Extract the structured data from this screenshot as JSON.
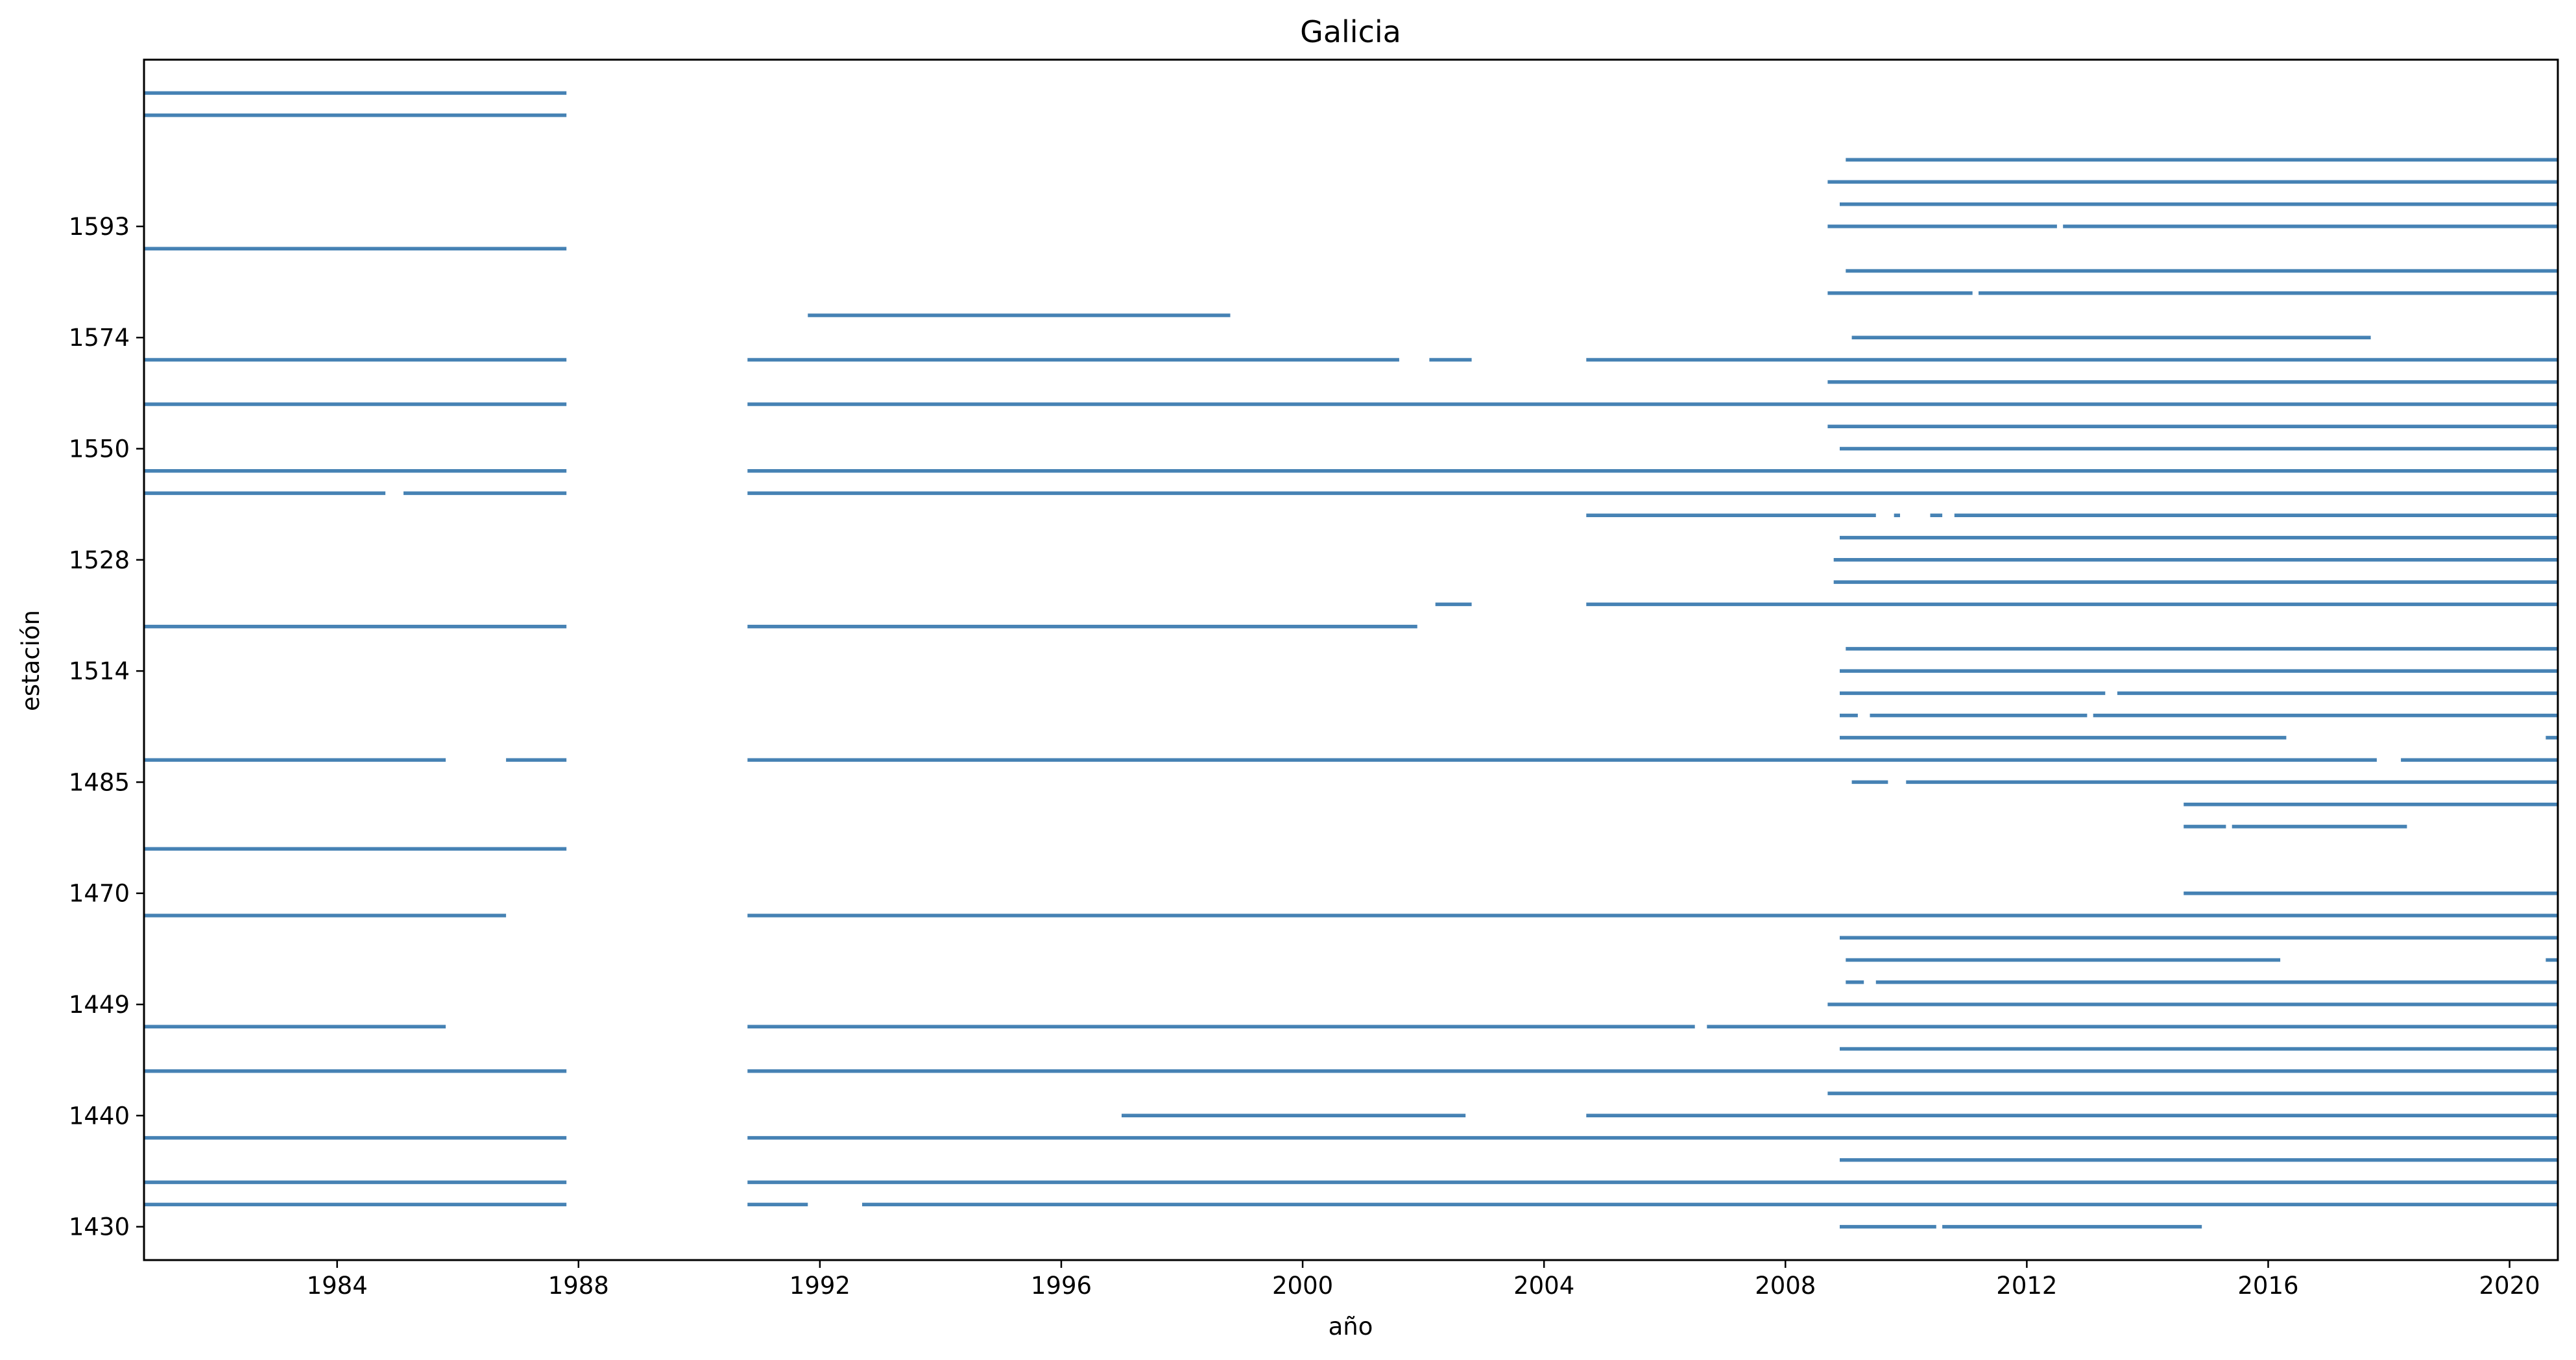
{
  "chart_data": {
    "type": "timeline",
    "title": "Galicia",
    "xlabel": "año",
    "ylabel": "estación",
    "xlim": [
      1980.8,
      2020.8
    ],
    "x_ticks": [
      1984,
      1988,
      1992,
      1996,
      2000,
      2004,
      2008,
      2012,
      2016,
      2020
    ],
    "ylim": [
      -1.5,
      52.5
    ],
    "y_ticks": [
      {
        "row": 0,
        "label": "1430"
      },
      {
        "row": 5,
        "label": "1440"
      },
      {
        "row": 10,
        "label": "1449"
      },
      {
        "row": 15,
        "label": "1470"
      },
      {
        "row": 20,
        "label": "1485"
      },
      {
        "row": 25,
        "label": "1514"
      },
      {
        "row": 30,
        "label": "1528"
      },
      {
        "row": 35,
        "label": "1550"
      },
      {
        "row": 40,
        "label": "1574"
      },
      {
        "row": 45,
        "label": "1593"
      }
    ],
    "series_color": "#4682b4",
    "rows": [
      {
        "row": 0,
        "segments": [
          [
            2008.9,
            2010.5
          ],
          [
            2010.6,
            2014.9
          ]
        ]
      },
      {
        "row": 1,
        "segments": [
          [
            1980.8,
            1987.8
          ],
          [
            1990.8,
            1991.8
          ],
          [
            1992.7,
            2020.8
          ]
        ]
      },
      {
        "row": 2,
        "segments": [
          [
            1980.8,
            1987.8
          ],
          [
            1990.8,
            2020.8
          ]
        ]
      },
      {
        "row": 3,
        "segments": [
          [
            2008.9,
            2020.8
          ]
        ]
      },
      {
        "row": 4,
        "segments": [
          [
            1980.8,
            1987.8
          ],
          [
            1990.8,
            2020.8
          ]
        ]
      },
      {
        "row": 5,
        "segments": [
          [
            1997.0,
            2002.7
          ],
          [
            2004.7,
            2020.8
          ]
        ]
      },
      {
        "row": 6,
        "segments": [
          [
            2008.7,
            2020.8
          ]
        ]
      },
      {
        "row": 7,
        "segments": [
          [
            1980.8,
            1987.8
          ],
          [
            1990.8,
            2020.8
          ]
        ]
      },
      {
        "row": 8,
        "segments": [
          [
            2008.9,
            2020.8
          ]
        ]
      },
      {
        "row": 9,
        "segments": [
          [
            1980.8,
            1985.8
          ],
          [
            1990.8,
            2006.5
          ],
          [
            2006.7,
            2020.8
          ]
        ]
      },
      {
        "row": 10,
        "segments": [
          [
            2008.7,
            2020.8
          ]
        ]
      },
      {
        "row": 11,
        "segments": [
          [
            2009.0,
            2009.3
          ],
          [
            2009.5,
            2020.8
          ]
        ]
      },
      {
        "row": 12,
        "segments": [
          [
            2009.0,
            2016.2
          ],
          [
            2020.6,
            2020.8
          ]
        ]
      },
      {
        "row": 13,
        "segments": [
          [
            2008.9,
            2020.8
          ]
        ]
      },
      {
        "row": 14,
        "segments": [
          [
            1980.8,
            1986.8
          ],
          [
            1990.8,
            2020.8
          ]
        ]
      },
      {
        "row": 15,
        "segments": [
          [
            2014.6,
            2020.8
          ]
        ]
      },
      {
        "row": 16,
        "segments": []
      },
      {
        "row": 17,
        "segments": [
          [
            1980.8,
            1987.8
          ]
        ]
      },
      {
        "row": 18,
        "segments": [
          [
            2014.6,
            2015.3
          ],
          [
            2015.4,
            2018.3
          ]
        ]
      },
      {
        "row": 19,
        "segments": [
          [
            2014.6,
            2020.8
          ]
        ]
      },
      {
        "row": 20,
        "segments": [
          [
            2009.1,
            2009.7
          ],
          [
            2010.0,
            2020.8
          ]
        ]
      },
      {
        "row": 21,
        "segments": [
          [
            1980.8,
            1985.8
          ],
          [
            1986.8,
            1987.8
          ],
          [
            1990.8,
            2017.8
          ],
          [
            2018.2,
            2020.8
          ]
        ]
      },
      {
        "row": 22,
        "segments": [
          [
            2008.9,
            2016.3
          ],
          [
            2020.6,
            2020.8
          ]
        ]
      },
      {
        "row": 23,
        "segments": [
          [
            2008.9,
            2009.2
          ],
          [
            2009.4,
            2013.0
          ],
          [
            2013.1,
            2020.8
          ]
        ]
      },
      {
        "row": 24,
        "segments": [
          [
            2008.9,
            2013.3
          ],
          [
            2013.5,
            2020.8
          ]
        ]
      },
      {
        "row": 25,
        "segments": [
          [
            2008.9,
            2020.8
          ]
        ]
      },
      {
        "row": 26,
        "segments": [
          [
            2009.0,
            2020.8
          ]
        ]
      },
      {
        "row": 27,
        "segments": [
          [
            1980.8,
            1987.8
          ],
          [
            1990.8,
            2001.9
          ]
        ]
      },
      {
        "row": 28,
        "segments": [
          [
            2002.2,
            2002.8
          ],
          [
            2004.7,
            2020.8
          ]
        ]
      },
      {
        "row": 29,
        "segments": [
          [
            2008.8,
            2020.8
          ]
        ]
      },
      {
        "row": 30,
        "segments": [
          [
            2008.8,
            2020.8
          ]
        ]
      },
      {
        "row": 31,
        "segments": [
          [
            2008.9,
            2020.8
          ]
        ]
      },
      {
        "row": 32,
        "segments": [
          [
            2004.7,
            2009.5
          ],
          [
            2009.8,
            2009.9
          ],
          [
            2010.4,
            2010.6
          ],
          [
            2010.8,
            2020.8
          ]
        ]
      },
      {
        "row": 33,
        "segments": [
          [
            1980.8,
            1984.8
          ],
          [
            1985.1,
            1987.8
          ],
          [
            1990.8,
            2020.8
          ]
        ]
      },
      {
        "row": 34,
        "segments": [
          [
            1980.8,
            1987.8
          ],
          [
            1990.8,
            2020.8
          ]
        ]
      },
      {
        "row": 35,
        "segments": [
          [
            2008.9,
            2020.8
          ]
        ]
      },
      {
        "row": 36,
        "segments": [
          [
            2008.7,
            2020.8
          ]
        ]
      },
      {
        "row": 37,
        "segments": [
          [
            1980.8,
            1987.8
          ],
          [
            1990.8,
            2020.8
          ]
        ]
      },
      {
        "row": 38,
        "segments": [
          [
            2008.7,
            2020.8
          ]
        ]
      },
      {
        "row": 39,
        "segments": [
          [
            1980.8,
            1987.8
          ],
          [
            1990.8,
            2001.6
          ],
          [
            2002.1,
            2002.8
          ],
          [
            2004.7,
            2020.8
          ]
        ]
      },
      {
        "row": 40,
        "segments": [
          [
            2009.1,
            2017.7
          ]
        ]
      },
      {
        "row": 41,
        "segments": [
          [
            1991.8,
            1998.8
          ]
        ]
      },
      {
        "row": 42,
        "segments": [
          [
            2008.7,
            2011.1
          ],
          [
            2011.2,
            2020.8
          ]
        ]
      },
      {
        "row": 43,
        "segments": [
          [
            2009.0,
            2020.8
          ]
        ]
      },
      {
        "row": 44,
        "segments": [
          [
            1980.8,
            1987.8
          ]
        ]
      },
      {
        "row": 45,
        "segments": [
          [
            2008.7,
            2012.5
          ],
          [
            2012.6,
            2020.8
          ]
        ]
      },
      {
        "row": 46,
        "segments": [
          [
            2008.9,
            2020.8
          ]
        ]
      },
      {
        "row": 47,
        "segments": [
          [
            2008.7,
            2020.8
          ]
        ]
      },
      {
        "row": 48,
        "segments": [
          [
            2009.0,
            2020.8
          ]
        ]
      },
      {
        "row": 49,
        "segments": []
      },
      {
        "row": 50,
        "segments": [
          [
            1980.8,
            1987.8
          ]
        ]
      },
      {
        "row": 51,
        "segments": [
          [
            1980.8,
            1987.8
          ]
        ]
      }
    ]
  }
}
